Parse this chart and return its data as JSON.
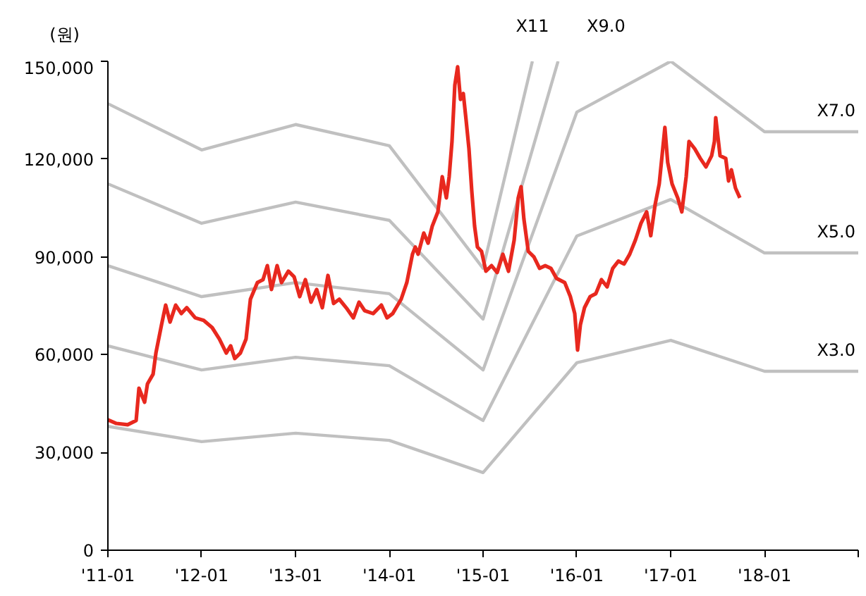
{
  "chart_data": {
    "type": "line",
    "ylabel": "(원)",
    "xlim": [
      "2011-01",
      "2019-01"
    ],
    "ylim": [
      0,
      150000
    ],
    "xticks": [
      {
        "value": "2011-01",
        "label": "'11-01"
      },
      {
        "value": "2012-01",
        "label": "'12-01"
      },
      {
        "value": "2013-01",
        "label": "'13-01"
      },
      {
        "value": "2014-01",
        "label": "'14-01"
      },
      {
        "value": "2015-01",
        "label": "'15-01"
      },
      {
        "value": "2016-01",
        "label": "'16-01"
      },
      {
        "value": "2017-01",
        "label": "'17-01"
      },
      {
        "value": "2018-01",
        "label": "'18-01"
      },
      {
        "value": "2019-01",
        "label": null
      }
    ],
    "yticks": [
      0,
      {
        "value": 30000,
        "label": "30,000"
      },
      {
        "value": 60000,
        "label": "60,000"
      },
      {
        "value": 90000,
        "label": "90,000"
      },
      {
        "value": 120000,
        "label": "120,000"
      },
      {
        "value": 150000,
        "label": "150,000"
      }
    ],
    "grid": false,
    "marker": "none",
    "line_style": "solid",
    "series": [
      {
        "name": "X3.0",
        "color": "#c0c0c0",
        "x": [
          "2011-01",
          "2012-01",
          "2013-01",
          "2014-01",
          "2015-01",
          "2016-01",
          "2017-01",
          "2018-01",
          "2019-01"
        ],
        "values": [
          38000,
          33300,
          35900,
          33700,
          23800,
          57500,
          64400,
          54900,
          54900
        ]
      },
      {
        "name": "X5.0",
        "color": "#c0c0c0",
        "x": [
          "2011-01",
          "2012-01",
          "2013-01",
          "2014-01",
          "2015-01",
          "2016-01",
          "2017-01",
          "2018-01",
          "2019-01"
        ],
        "values": [
          62700,
          55300,
          59200,
          56600,
          39800,
          96400,
          107600,
          91200,
          91200
        ]
      },
      {
        "name": "X7.0",
        "color": "#c0c0c0",
        "x": [
          "2011-01",
          "2012-01",
          "2013-01",
          "2014-01",
          "2015-01",
          "2016-01",
          "2017-01",
          "2018-01",
          "2019-01"
        ],
        "values": [
          87300,
          77800,
          82100,
          78700,
          55300,
          134400,
          150000,
          128400,
          128400
        ]
      },
      {
        "name": "X9.0",
        "color": "#c0c0c0",
        "x": [
          "2011-01",
          "2012-01",
          "2013-01",
          "2014-01",
          "2015-01",
          "2015-10-20"
        ],
        "values": [
          112400,
          100300,
          106800,
          101200,
          70900,
          150000
        ]
      },
      {
        "name": "X11",
        "color": "#c0c0c0",
        "x": [
          "2011-01",
          "2012-01",
          "2013-01",
          "2014-01",
          "2015-01",
          "2015-07-12"
        ],
        "values": [
          137000,
          122800,
          130600,
          124100,
          86500,
          150000
        ]
      },
      {
        "color": "#e8281e",
        "x": [
          "2011-01-01",
          "2011-02-03",
          "2011-03-19",
          "2011-04-21",
          "2011-05-02",
          "2011-05-24",
          "2011-06-04",
          "2011-06-26",
          "2011-07-07",
          "2011-07-29",
          "2011-08-14",
          "2011-08-31",
          "2011-09-22",
          "2011-10-14",
          "2011-11-04",
          "2011-12-07",
          "2012-01-09",
          "2012-02-11",
          "2012-03-10",
          "2012-04-06",
          "2012-04-23",
          "2012-05-09",
          "2012-05-31",
          "2012-06-22",
          "2012-07-09",
          "2012-08-05",
          "2012-08-27",
          "2012-09-13",
          "2012-09-29",
          "2012-10-21",
          "2012-11-07",
          "2012-12-04",
          "2012-12-26",
          "2013-01-17",
          "2013-02-08",
          "2013-03-02",
          "2013-03-24",
          "2013-04-15",
          "2013-05-07",
          "2013-05-29",
          "2013-06-20",
          "2013-07-17",
          "2013-08-14",
          "2013-09-05",
          "2013-09-27",
          "2013-10-30",
          "2013-12-01",
          "2013-12-23",
          "2014-01-14",
          "2014-02-16",
          "2014-03-10",
          "2014-04-01",
          "2014-04-12",
          "2014-04-23",
          "2014-05-15",
          "2014-06-01",
          "2014-06-17",
          "2014-07-09",
          "2014-07-26",
          "2014-08-11",
          "2014-08-22",
          "2014-09-02",
          "2014-09-13",
          "2014-09-24",
          "2014-10-05",
          "2014-10-16",
          "2014-10-27",
          "2014-11-07",
          "2014-11-18",
          "2014-11-29",
          "2014-12-10",
          "2014-12-26",
          "2015-01-12",
          "2015-02-03",
          "2015-02-25",
          "2015-03-19",
          "2015-04-10",
          "2015-05-02",
          "2015-05-18",
          "2015-05-29",
          "2015-06-09",
          "2015-06-26",
          "2015-07-18",
          "2015-08-09",
          "2015-08-31",
          "2015-09-22",
          "2015-10-14",
          "2015-11-15",
          "2015-12-07",
          "2015-12-24",
          "2016-01-04",
          "2016-01-15",
          "2016-01-31",
          "2016-02-22",
          "2016-03-15",
          "2016-04-06",
          "2016-04-28",
          "2016-05-20",
          "2016-06-11",
          "2016-07-03",
          "2016-07-25",
          "2016-08-16",
          "2016-09-07",
          "2016-09-29",
          "2016-10-15",
          "2016-11-01",
          "2016-11-17",
          "2016-11-28",
          "2016-12-09",
          "2016-12-20",
          "2017-01-06",
          "2017-01-28",
          "2017-02-13",
          "2017-03-02",
          "2017-03-13",
          "2017-04-04",
          "2017-04-26",
          "2017-05-18",
          "2017-06-09",
          "2017-06-20",
          "2017-06-25",
          "2017-07-12",
          "2017-08-03",
          "2017-08-14",
          "2017-08-25",
          "2017-09-10",
          "2017-09-27"
        ],
        "values": [
          40000,
          38900,
          38500,
          39800,
          49700,
          45400,
          51000,
          54000,
          60500,
          69200,
          75200,
          70000,
          75200,
          72600,
          74400,
          71300,
          70500,
          68300,
          64800,
          60500,
          62700,
          58800,
          60500,
          64800,
          77000,
          82100,
          83000,
          87300,
          80000,
          87300,
          82100,
          85600,
          83900,
          77800,
          83000,
          76100,
          80000,
          74400,
          84300,
          75700,
          77000,
          74400,
          71300,
          76100,
          73500,
          72600,
          75200,
          71300,
          72600,
          77000,
          82100,
          90800,
          93000,
          90800,
          97300,
          94200,
          99400,
          103800,
          114600,
          108100,
          114600,
          125400,
          142700,
          148300,
          138300,
          140100,
          131900,
          123200,
          110200,
          99400,
          93000,
          91700,
          85600,
          87300,
          85200,
          90800,
          85600,
          95100,
          108100,
          111500,
          101600,
          91700,
          90000,
          86500,
          87300,
          86500,
          83400,
          82100,
          77800,
          72600,
          61400,
          69200,
          74400,
          77800,
          78700,
          83000,
          80800,
          86500,
          88700,
          87800,
          90800,
          95100,
          100300,
          103800,
          96500,
          106000,
          112400,
          121000,
          129700,
          119000,
          112400,
          108100,
          103800,
          114600,
          125400,
          123200,
          120200,
          117600,
          121000,
          125400,
          132700,
          121000,
          120200,
          113300,
          116700,
          111100,
          108100
        ]
      }
    ]
  }
}
